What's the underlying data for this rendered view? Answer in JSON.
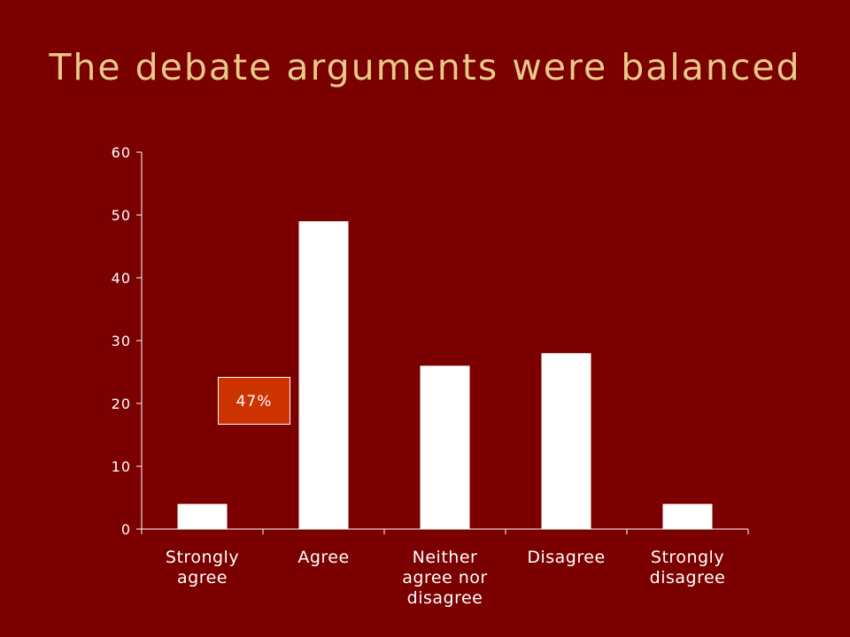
{
  "slide": {
    "title": "The debate arguments were balanced"
  },
  "colors": {
    "background": "#7b0000",
    "title": "#e8c98a",
    "bars": "#ffffff",
    "axis": "#ffffff",
    "annotation_fill": "#cc3300"
  },
  "chart_data": {
    "type": "bar",
    "title": "The debate arguments were balanced",
    "categories": [
      [
        "Strongly",
        "agree"
      ],
      [
        "Agree"
      ],
      [
        "Neither",
        "agree nor",
        "disagree"
      ],
      [
        "Disagree"
      ],
      [
        "Strongly",
        "disagree"
      ]
    ],
    "values": [
      4,
      49,
      26,
      28,
      4
    ],
    "xlabel": "",
    "ylabel": "",
    "ylim": [
      0,
      60
    ],
    "yticks": [
      0,
      10,
      20,
      30,
      40,
      50,
      60
    ],
    "grid": false,
    "legend": "none",
    "annotation": {
      "text": "47%"
    }
  }
}
